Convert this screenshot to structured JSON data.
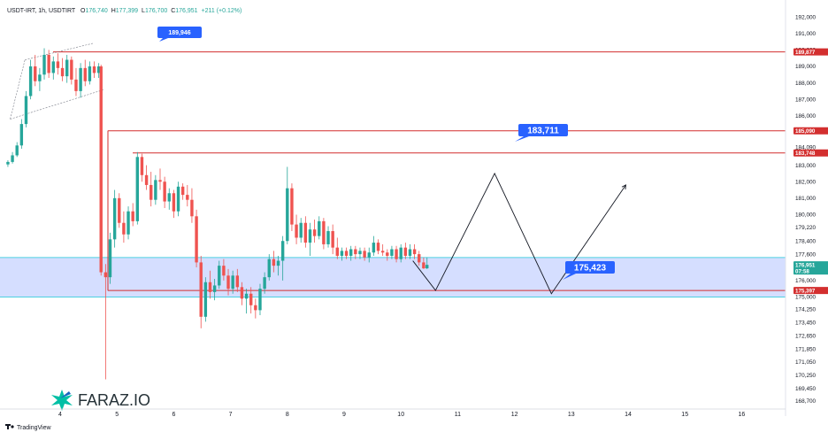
{
  "header": {
    "symbol": "USDT-IRT, 1h, USDTIRT",
    "open_label": "O",
    "open": "176,740",
    "high_label": "H",
    "high": "177,399",
    "low_label": "L",
    "low": "176,700",
    "close_label": "C",
    "close": "176,951",
    "change": "+211 (+0.12%)"
  },
  "footer": {
    "brand": "TradingView"
  },
  "watermark": {
    "text": "FARAZ.IO"
  },
  "colors": {
    "up": "#26a69a",
    "down": "#ef5350",
    "level_line": "#d32f2f",
    "zone_fill": "#c7d3ff",
    "zone_border": "#4dd0e1",
    "callout": "#2962ff",
    "price_badge": "#26a69a"
  },
  "chart_data": {
    "type": "candlestick",
    "interval": "1h",
    "x_tick_labels": [
      "4",
      "5",
      "6",
      "7",
      "8",
      "9",
      "10",
      "11",
      "12",
      "13",
      "14",
      "15",
      "16"
    ],
    "y_tick_labels": [
      "192,000",
      "191,000",
      "190,000",
      "189,000",
      "188,000",
      "187,000",
      "186,000",
      "184,090",
      "183,000",
      "182,000",
      "181,000",
      "180,000",
      "179,220",
      "178,400",
      "177,600",
      "176,000",
      "175,000",
      "174,250",
      "173,450",
      "172,650",
      "171,850",
      "171,050",
      "170,250",
      "169,450",
      "168,700"
    ],
    "y_ticks": [
      192000,
      191000,
      190000,
      189000,
      188000,
      187000,
      186000,
      184090,
      183000,
      182000,
      181000,
      180000,
      179220,
      178400,
      177600,
      176000,
      175000,
      174250,
      173450,
      172650,
      171850,
      171050,
      170250,
      169450,
      168700
    ],
    "ylim": [
      168200,
      192600
    ],
    "x_day_start": 3.08,
    "x_day_end": 17.0,
    "candles": [
      [
        3.08,
        183050,
        183300,
        182900,
        183200
      ],
      [
        3.16,
        183200,
        183800,
        183100,
        183600
      ],
      [
        3.24,
        183600,
        184400,
        183500,
        184200
      ],
      [
        3.32,
        184200,
        185800,
        184000,
        185500
      ],
      [
        3.4,
        185500,
        187500,
        185300,
        187200
      ],
      [
        3.48,
        187200,
        189400,
        187000,
        189000
      ],
      [
        3.56,
        189000,
        189700,
        187800,
        188100
      ],
      [
        3.64,
        188100,
        188900,
        187500,
        188500
      ],
      [
        3.72,
        188500,
        190100,
        188200,
        189700
      ],
      [
        3.8,
        189700,
        190000,
        188300,
        188600
      ],
      [
        3.88,
        188600,
        189600,
        188200,
        189300
      ],
      [
        3.96,
        189300,
        189800,
        188500,
        188900
      ],
      [
        4.04,
        188900,
        189500,
        188100,
        188400
      ],
      [
        4.12,
        188400,
        189700,
        188000,
        189400
      ],
      [
        4.2,
        189400,
        189600,
        187900,
        188200
      ],
      [
        4.28,
        188200,
        188900,
        187200,
        187500
      ],
      [
        4.36,
        187500,
        189200,
        187100,
        188900
      ],
      [
        4.44,
        188900,
        189400,
        187800,
        188100
      ],
      [
        4.52,
        188100,
        189300,
        187900,
        189000
      ],
      [
        4.6,
        189000,
        189300,
        188300,
        188600
      ],
      [
        4.68,
        188600,
        189200,
        188300,
        189000
      ],
      [
        4.72,
        189000,
        189100,
        176300,
        176500
      ],
      [
        4.8,
        176500,
        177000,
        170000,
        176200
      ],
      [
        4.88,
        176200,
        178900,
        175800,
        178500
      ],
      [
        4.96,
        178500,
        181500,
        178000,
        181000
      ],
      [
        5.04,
        181000,
        181300,
        179200,
        179500
      ],
      [
        5.12,
        179500,
        180200,
        178300,
        178800
      ],
      [
        5.2,
        178800,
        180500,
        178500,
        180200
      ],
      [
        5.28,
        180200,
        180700,
        179300,
        179600
      ],
      [
        5.36,
        179600,
        183800,
        179400,
        183500
      ],
      [
        5.44,
        183500,
        183700,
        182000,
        182400
      ],
      [
        5.52,
        182400,
        183000,
        181500,
        181800
      ],
      [
        5.6,
        181800,
        182600,
        180500,
        180900
      ],
      [
        5.68,
        180900,
        182400,
        180600,
        182100
      ],
      [
        5.76,
        182100,
        182800,
        181500,
        182000
      ],
      [
        5.84,
        182000,
        182300,
        180400,
        180800
      ],
      [
        5.92,
        180800,
        181600,
        180300,
        181300
      ],
      [
        6.0,
        181300,
        181500,
        179800,
        180200
      ],
      [
        6.08,
        180200,
        182000,
        179900,
        181700
      ],
      [
        6.16,
        181700,
        181900,
        180900,
        181200
      ],
      [
        6.24,
        181200,
        181800,
        180500,
        180900
      ],
      [
        6.32,
        180900,
        181600,
        179500,
        179900
      ],
      [
        6.4,
        179900,
        180300,
        176800,
        177100
      ],
      [
        6.48,
        177100,
        177500,
        173100,
        173800
      ],
      [
        6.56,
        173800,
        176200,
        173500,
        175900
      ],
      [
        6.64,
        175900,
        176600,
        174900,
        175300
      ],
      [
        6.72,
        175300,
        176100,
        174800,
        175700
      ],
      [
        6.8,
        175700,
        177200,
        175500,
        176900
      ],
      [
        6.88,
        176900,
        177300,
        176000,
        176300
      ],
      [
        6.96,
        176300,
        176700,
        175100,
        175500
      ],
      [
        7.04,
        175500,
        176600,
        175200,
        176300
      ],
      [
        7.12,
        176300,
        176700,
        175300,
        175600
      ],
      [
        7.2,
        175600,
        175900,
        174500,
        174900
      ],
      [
        7.28,
        174900,
        175500,
        174000,
        175200
      ],
      [
        7.36,
        175200,
        175600,
        174000,
        174500
      ],
      [
        7.44,
        174500,
        174900,
        173700,
        174200
      ],
      [
        7.52,
        174200,
        175800,
        173900,
        175500
      ],
      [
        7.6,
        175500,
        176500,
        175200,
        176200
      ],
      [
        7.68,
        176200,
        177600,
        176000,
        177300
      ],
      [
        7.76,
        177300,
        177800,
        176500,
        176900
      ],
      [
        7.84,
        176900,
        177500,
        176300,
        177200
      ],
      [
        7.92,
        177200,
        178700,
        176000,
        178400
      ],
      [
        8.0,
        178400,
        182900,
        178200,
        181600
      ],
      [
        8.08,
        181600,
        181900,
        179000,
        179400
      ],
      [
        8.16,
        179400,
        180000,
        178200,
        178600
      ],
      [
        8.24,
        178600,
        179800,
        178300,
        179500
      ],
      [
        8.32,
        179500,
        179900,
        178000,
        178300
      ],
      [
        8.4,
        178300,
        179500,
        177500,
        179100
      ],
      [
        8.48,
        179100,
        179700,
        178300,
        178700
      ],
      [
        8.56,
        178700,
        179900,
        178500,
        179600
      ],
      [
        8.64,
        179600,
        179800,
        177900,
        178200
      ],
      [
        8.72,
        178200,
        179300,
        178000,
        179000
      ],
      [
        8.8,
        179000,
        179400,
        177600,
        178000
      ],
      [
        8.88,
        178000,
        178600,
        177300,
        177500
      ],
      [
        8.96,
        177500,
        178000,
        177200,
        177800
      ],
      [
        9.04,
        177800,
        178000,
        177300,
        177500
      ],
      [
        9.12,
        177500,
        178100,
        177200,
        177900
      ],
      [
        9.2,
        177900,
        178100,
        177300,
        177600
      ],
      [
        9.28,
        177600,
        178000,
        177300,
        177800
      ],
      [
        9.36,
        177800,
        178000,
        177200,
        177400
      ],
      [
        9.44,
        177400,
        178000,
        177100,
        177700
      ],
      [
        9.52,
        177700,
        178700,
        177500,
        178300
      ],
      [
        9.6,
        178300,
        178500,
        177600,
        177800
      ],
      [
        9.68,
        177800,
        178200,
        177500,
        177700
      ],
      [
        9.76,
        177700,
        177900,
        177200,
        177500
      ],
      [
        9.84,
        177500,
        178100,
        177300,
        177900
      ],
      [
        9.92,
        177900,
        178100,
        177100,
        177300
      ],
      [
        10.0,
        177300,
        178200,
        177100,
        178000
      ],
      [
        10.08,
        178000,
        178300,
        177300,
        177500
      ],
      [
        10.16,
        177500,
        178200,
        177300,
        177900
      ],
      [
        10.24,
        177900,
        178200,
        177300,
        177600
      ],
      [
        10.32,
        177600,
        177800,
        176900,
        177100
      ],
      [
        10.4,
        177100,
        177400,
        176700,
        176740
      ],
      [
        10.46,
        176740,
        177399,
        176700,
        176951
      ]
    ],
    "levels": [
      {
        "price": 189877,
        "label": "189,877"
      },
      {
        "price": 185090,
        "label": "185,090"
      },
      {
        "price": 183748,
        "label": "183,748"
      },
      {
        "price": 175397,
        "label": "175,397"
      }
    ],
    "current_price": {
      "price": 176951,
      "label": "176,951",
      "countdown": "07:58"
    },
    "zone": {
      "from": 175000,
      "to": 177400
    },
    "callouts": [
      {
        "label": "189,946",
        "x": 4.9,
        "price": 189946
      },
      {
        "label": "183,711",
        "x": 11.9,
        "price": 183711
      },
      {
        "label": "175,423",
        "x": 13.0,
        "price": 175423
      }
    ],
    "channel": [
      [
        3.08,
        186500
      ],
      [
        4.0,
        190000
      ],
      [
        4.6,
        189500
      ],
      [
        3.12,
        185000
      ],
      [
        4.7,
        187700
      ]
    ],
    "projection": [
      [
        10.21,
        177200
      ],
      [
        10.61,
        175400
      ],
      [
        11.65,
        182500
      ],
      [
        12.65,
        175200
      ],
      [
        13.96,
        181800
      ]
    ]
  }
}
